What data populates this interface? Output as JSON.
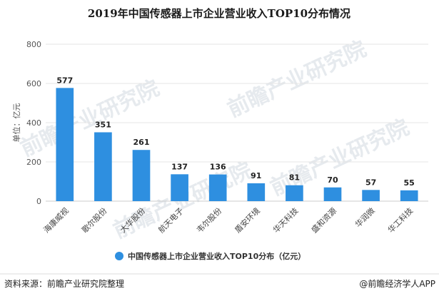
{
  "title": "2019年中国传感器上市企业营业收入TOP10分布情况",
  "ylabel": "单位：亿元",
  "source": "资料来源：前瞻产业研究院整理",
  "brand": "@前瞻经济学人APP",
  "watermark": "前瞻产业研究院",
  "colors": {
    "bar": "#2e8fe0",
    "grid": "#e4e4e4",
    "axis": "#cccccc"
  },
  "chart_data": {
    "type": "bar",
    "categories": [
      "海康威视",
      "歌尔股份",
      "大华股份",
      "航天电子",
      "韦尔股份",
      "盾安环境",
      "华天科技",
      "盛和资源",
      "华润微",
      "华工科技"
    ],
    "series": [
      {
        "name": "中国传感器上市企业营业收入TOP10分布（亿元）",
        "values": [
          577,
          351,
          261,
          137,
          136,
          91,
          81,
          70,
          57,
          55
        ]
      }
    ],
    "yticks": [
      0,
      200,
      400,
      600,
      800
    ],
    "ylim": [
      0,
      800
    ],
    "grid": true,
    "legend": "bottom-center"
  }
}
